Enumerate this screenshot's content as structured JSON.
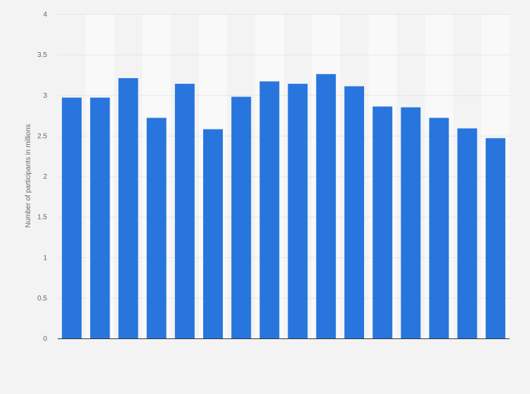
{
  "chart_data": {
    "type": "bar",
    "categories": [
      "",
      "",
      "",
      "",
      "",
      "",
      "",
      "",
      "",
      "",
      "",
      "",
      "",
      "",
      "",
      ""
    ],
    "values": [
      2.97,
      2.97,
      3.21,
      2.72,
      3.14,
      2.58,
      2.98,
      3.17,
      3.14,
      3.26,
      3.11,
      2.86,
      2.85,
      2.72,
      2.59,
      2.47
    ],
    "xlabel": "",
    "ylabel": "Number of participants in millions",
    "ylim": [
      0,
      4
    ],
    "yticks": [
      "0",
      "0.5",
      "1",
      "1.5",
      "2",
      "2.5",
      "3",
      "3.5",
      "4"
    ],
    "grid": true,
    "bar_color": "#2876dd"
  }
}
